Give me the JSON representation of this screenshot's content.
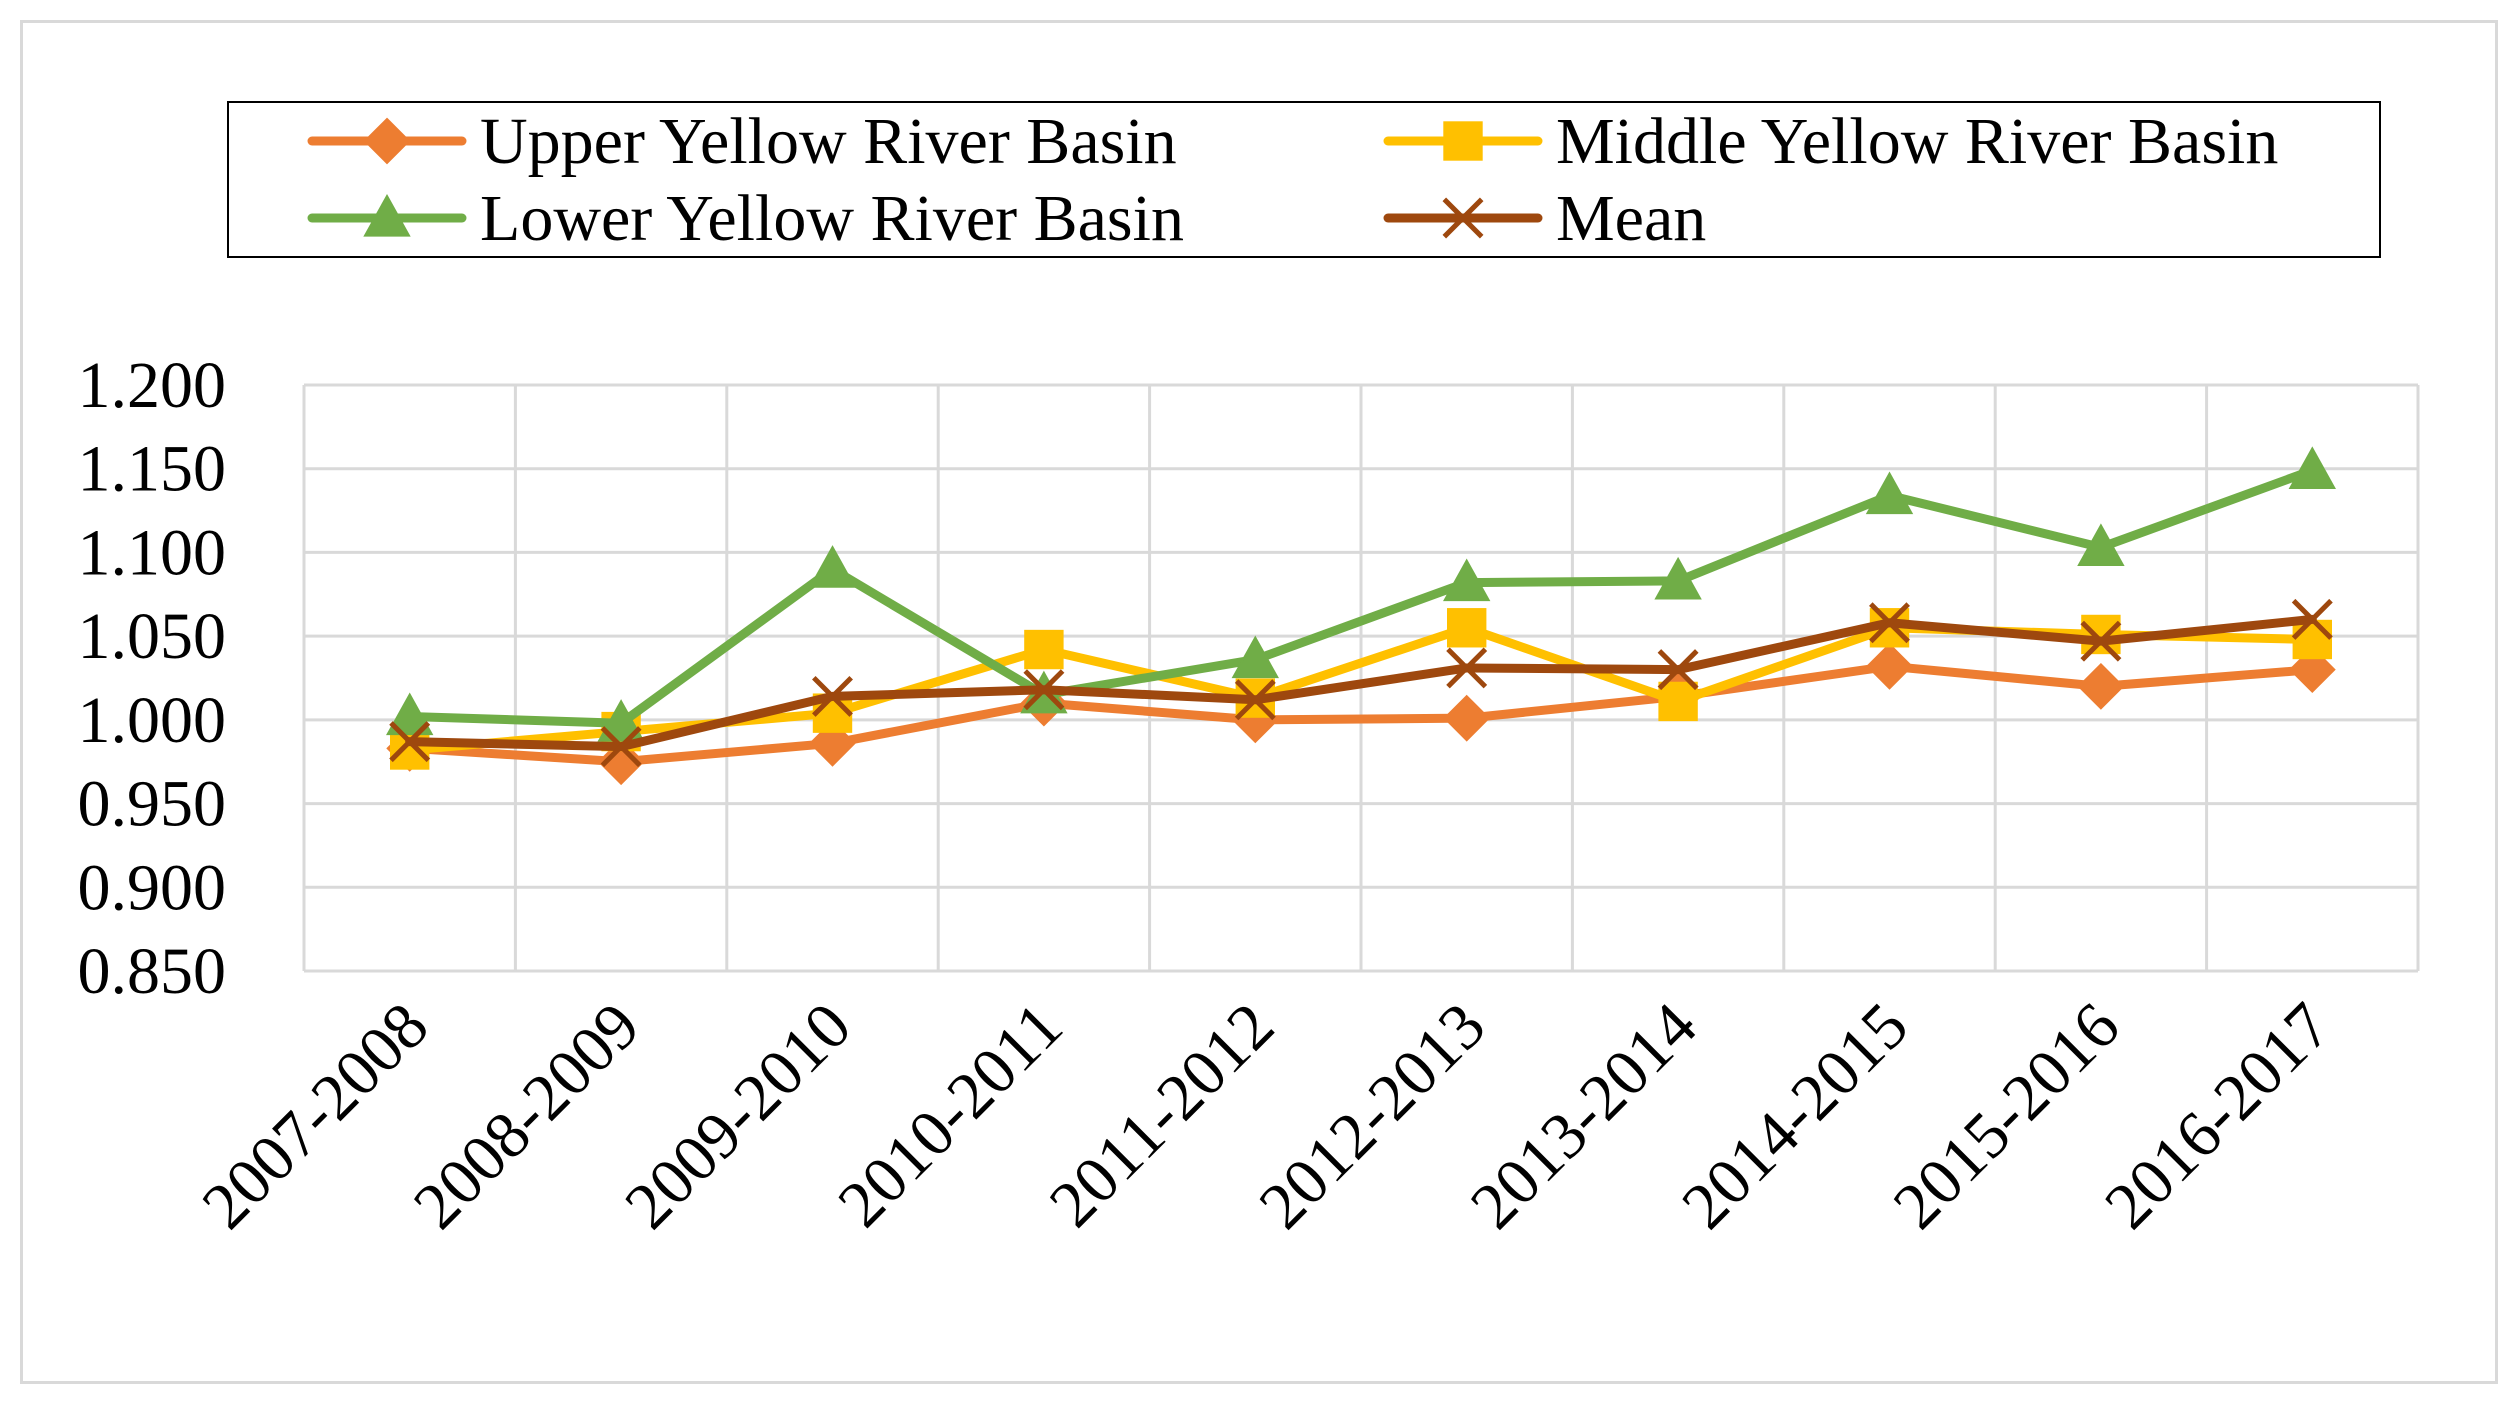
{
  "chart_data": {
    "type": "line",
    "title": "",
    "xlabel": "",
    "ylabel": "",
    "categories": [
      "2007-2008",
      "2008-2009",
      "2009-2010",
      "2010-2011",
      "2011-2012",
      "2012-2013",
      "2013-2014",
      "2014-2015",
      "2015-2016",
      "2016-2017"
    ],
    "ylim": [
      0.85,
      1.2
    ],
    "yticks": [
      "0.850",
      "0.900",
      "0.950",
      "1.000",
      "1.050",
      "1.100",
      "1.150",
      "1.200"
    ],
    "grid": true,
    "legend_position": "top",
    "series": [
      {
        "name": "Upper Yellow River Basin",
        "color": "#ed7d31",
        "marker": "diamond",
        "values": [
          0.983,
          0.975,
          0.986,
          1.01,
          1.0,
          1.001,
          1.014,
          1.032,
          1.02,
          1.03
        ]
      },
      {
        "name": "Middle Yellow River Basin",
        "color": "#ffc000",
        "marker": "square",
        "values": [
          0.982,
          0.993,
          1.004,
          1.042,
          1.013,
          1.055,
          1.011,
          1.055,
          1.051,
          1.048
        ]
      },
      {
        "name": "Lower Yellow River Basin",
        "color": "#70ad47",
        "marker": "triangle",
        "values": [
          1.002,
          0.998,
          1.09,
          1.015,
          1.036,
          1.082,
          1.083,
          1.134,
          1.103,
          1.149
        ]
      },
      {
        "name": "Mean",
        "color": "#9e480e",
        "marker": "x",
        "values": [
          0.987,
          0.984,
          1.014,
          1.018,
          1.012,
          1.031,
          1.03,
          1.058,
          1.047,
          1.06
        ]
      }
    ]
  }
}
